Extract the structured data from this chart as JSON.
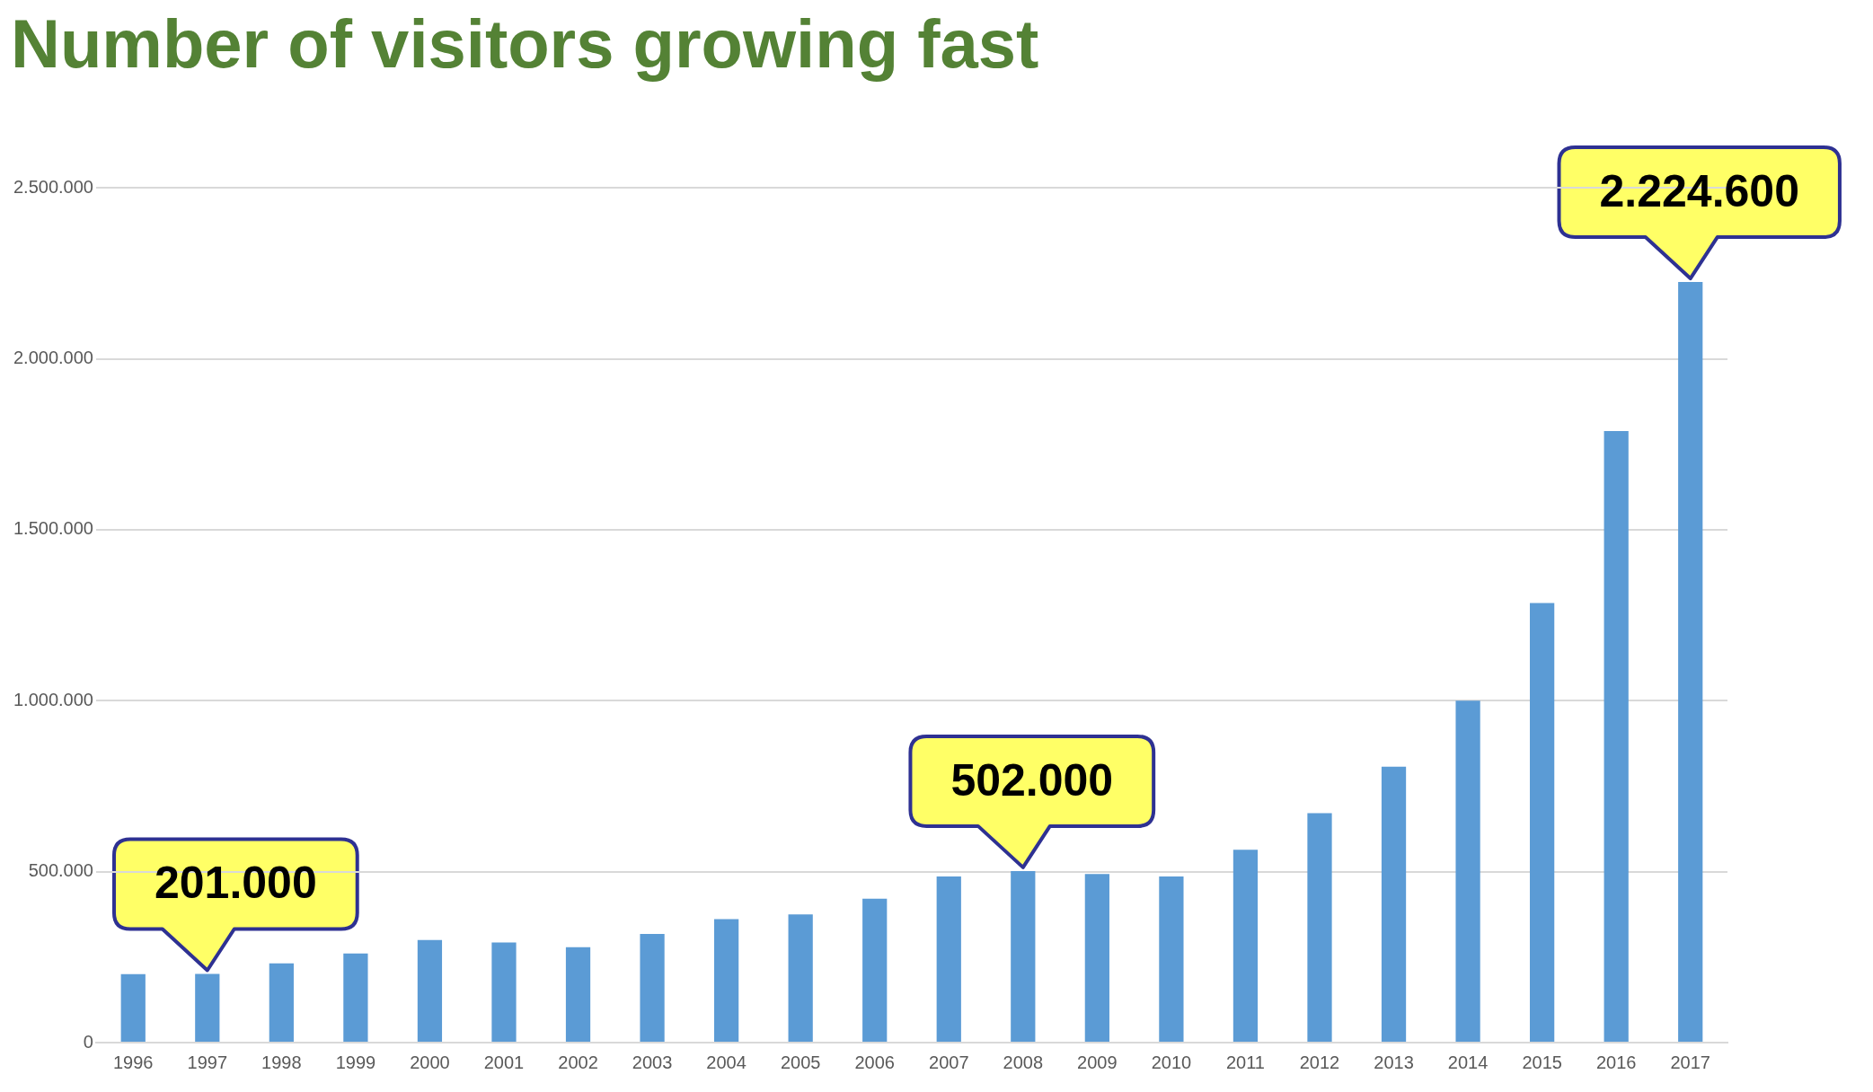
{
  "chart_data": {
    "type": "bar",
    "title": "Number of visitors growing fast",
    "categories": [
      "1996",
      "1997",
      "1998",
      "1999",
      "2000",
      "2001",
      "2002",
      "2003",
      "2004",
      "2005",
      "2006",
      "2007",
      "2008",
      "2009",
      "2010",
      "2011",
      "2012",
      "2013",
      "2014",
      "2015",
      "2016",
      "2017"
    ],
    "values": [
      200000,
      201000,
      232000,
      261000,
      300000,
      293000,
      279000,
      318000,
      361000,
      375000,
      421000,
      486000,
      502000,
      493000,
      486000,
      564000,
      671000,
      807000,
      1000000,
      1286000,
      1789000,
      2224600
    ],
    "value_labels": [
      null,
      "201.000",
      null,
      null,
      null,
      null,
      null,
      null,
      null,
      null,
      null,
      null,
      "502.000",
      null,
      null,
      null,
      null,
      null,
      null,
      null,
      null,
      "2.224.600"
    ],
    "color": "#5b9bd5",
    "ylim": [
      0,
      2500000
    ],
    "yticks": [
      {
        "value": 0,
        "label": "0"
      },
      {
        "value": 500000,
        "label": "500.000"
      },
      {
        "value": 1000000,
        "label": "1.000.000"
      },
      {
        "value": 1500000,
        "label": "1.500.000"
      },
      {
        "value": 2000000,
        "label": "2.000.000"
      },
      {
        "value": 2500000,
        "label": "2.500.000"
      }
    ],
    "grid": "y",
    "legend": false
  }
}
